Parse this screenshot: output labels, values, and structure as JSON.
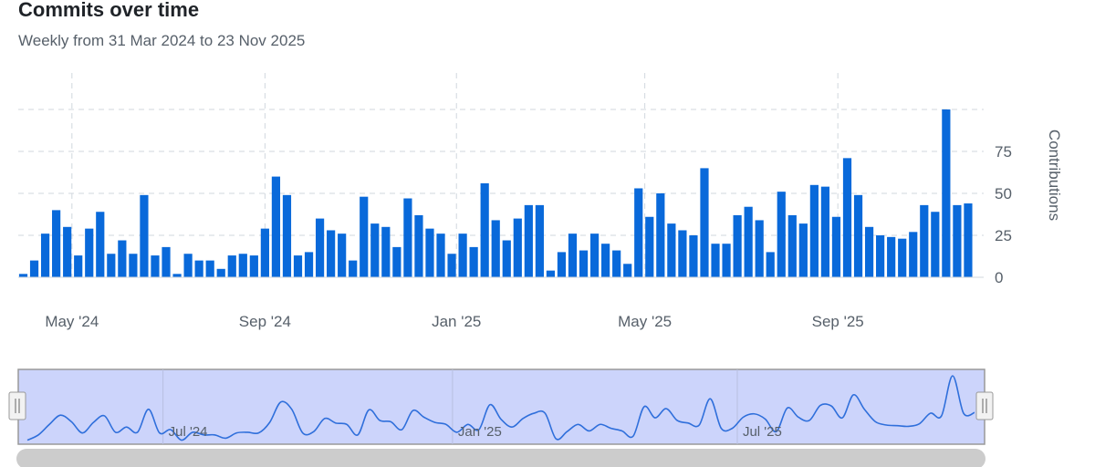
{
  "header": {
    "title": "Commits over time",
    "subtitle": "Weekly from 31 Mar 2024 to 23 Nov 2025"
  },
  "colors": {
    "bar": "#0969da",
    "grid": "#d0d7de",
    "navigator_fill": "#ccd4fb",
    "navigator_line": "#2f6fdb",
    "scrollbar": "#cccccc"
  },
  "chart_data": {
    "type": "bar",
    "title": "Commits over time",
    "subtitle": "Weekly from 31 Mar 2024 to 23 Nov 2025",
    "ylabel": "Contributions",
    "ylim": [
      0,
      100
    ],
    "yticks": [
      0,
      25,
      50,
      75
    ],
    "x_start": "2024-03-31",
    "x_interval_days": 7,
    "xticks": [
      {
        "label": "May '24",
        "date": "2024-05-01"
      },
      {
        "label": "Sep '24",
        "date": "2024-09-01"
      },
      {
        "label": "Jan '25",
        "date": "2025-01-01"
      },
      {
        "label": "May '25",
        "date": "2025-05-01"
      },
      {
        "label": "Sep '25",
        "date": "2025-09-01"
      }
    ],
    "grid": true,
    "values": [
      2,
      10,
      26,
      40,
      30,
      13,
      29,
      39,
      14,
      22,
      14,
      49,
      13,
      18,
      2,
      14,
      10,
      10,
      5,
      13,
      14,
      13,
      29,
      60,
      49,
      13,
      15,
      35,
      28,
      26,
      10,
      48,
      32,
      30,
      18,
      47,
      37,
      29,
      26,
      14,
      26,
      18,
      56,
      34,
      22,
      35,
      43,
      43,
      4,
      15,
      26,
      16,
      26,
      20,
      16,
      8,
      53,
      36,
      50,
      32,
      28,
      25,
      65,
      20,
      20,
      37,
      42,
      34,
      15,
      51,
      37,
      32,
      55,
      54,
      36,
      71,
      49,
      30,
      25,
      24,
      23,
      27,
      43,
      39,
      100,
      43,
      44
    ]
  },
  "navigator": {
    "ticks": [
      {
        "label": "Jul '24",
        "date": "2024-07-01"
      },
      {
        "label": "Jan '25",
        "date": "2025-01-01"
      },
      {
        "label": "Jul '25",
        "date": "2025-07-01"
      }
    ]
  }
}
